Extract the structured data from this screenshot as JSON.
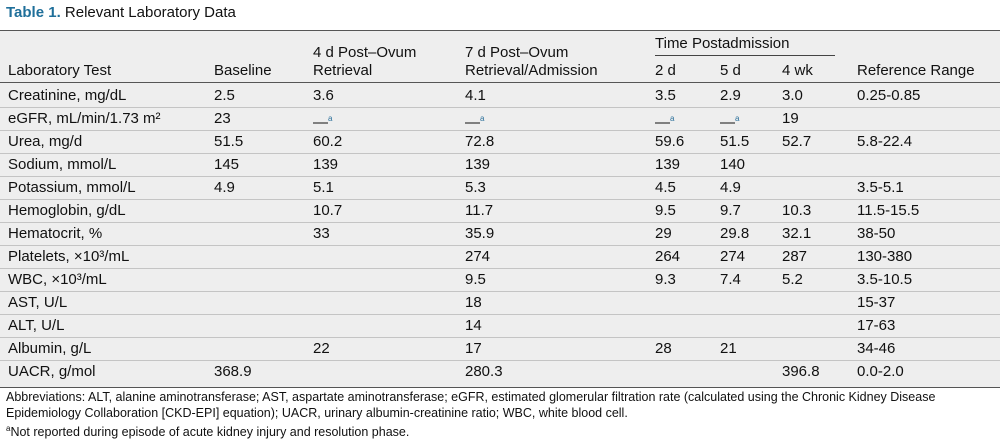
{
  "title": {
    "label": "Table 1.",
    "text": "Relevant Laboratory Data"
  },
  "table": {
    "group_header": "Time Postadmission",
    "columns": [
      [
        "Laboratory Test"
      ],
      [
        "Baseline"
      ],
      [
        "4 d Post–Ovum",
        "Retrieval"
      ],
      [
        "7 d Post–Ovum",
        "Retrieval/Admission"
      ],
      [
        "2 d"
      ],
      [
        "5 d"
      ],
      [
        "4 wk"
      ],
      [
        "Reference Range"
      ]
    ],
    "rows": [
      [
        "Creatinine, mg/dL",
        "2.5",
        "3.6",
        "4.1",
        "3.5",
        "2.9",
        "3.0",
        "0.25-0.85"
      ],
      [
        "eGFR, mL/min/1.73 m²",
        "23",
        {
          "text": "—",
          "sup": "a"
        },
        {
          "text": "—",
          "sup": "a"
        },
        {
          "text": "—",
          "sup": "a"
        },
        {
          "text": "—",
          "sup": "a"
        },
        "19",
        null
      ],
      [
        "Urea, mg/d",
        "51.5",
        "60.2",
        "72.8",
        "59.6",
        "51.5",
        "52.7",
        "5.8-22.4"
      ],
      [
        "Sodium, mmol/L",
        "145",
        "139",
        "139",
        "139",
        "140",
        null,
        null
      ],
      [
        "Potassium, mmol/L",
        "4.9",
        "5.1",
        "5.3",
        "4.5",
        "4.9",
        null,
        "3.5-5.1"
      ],
      [
        "Hemoglobin, g/dL",
        null,
        "10.7",
        "11.7",
        "9.5",
        "9.7",
        "10.3",
        "11.5-15.5"
      ],
      [
        "Hematocrit, %",
        null,
        "33",
        "35.9",
        "29",
        "29.8",
        "32.1",
        "38-50"
      ],
      [
        "Platelets, ×10³/mL",
        null,
        null,
        "274",
        "264",
        "274",
        "287",
        "130-380"
      ],
      [
        "WBC, ×10³/mL",
        null,
        null,
        "9.5",
        "9.3",
        "7.4",
        "5.2",
        "3.5-10.5"
      ],
      [
        "AST, U/L",
        null,
        null,
        "18",
        null,
        null,
        null,
        "15-37"
      ],
      [
        "ALT, U/L",
        null,
        null,
        "14",
        null,
        null,
        null,
        "17-63"
      ],
      [
        "Albumin, g/L",
        null,
        "22",
        "17",
        "28",
        "21",
        null,
        "34-46"
      ],
      [
        "UACR, g/mol",
        "368.9",
        null,
        "280.3",
        null,
        null,
        "396.8",
        "0.0-2.0"
      ]
    ]
  },
  "footnotes": {
    "abbreviations": "Abbreviations: ALT, alanine aminotransferase; AST, aspartate aminotransferase; eGFR, estimated glomerular filtration rate (calculated using the Chronic Kidney Disease Epidemiology Collaboration [CKD-EPI] equation); UACR, urinary albumin-creatinine ratio; WBC, white blood cell.",
    "note": {
      "marker": "a",
      "text": "Not reported during episode of acute kidney injury and resolution phase."
    }
  }
}
